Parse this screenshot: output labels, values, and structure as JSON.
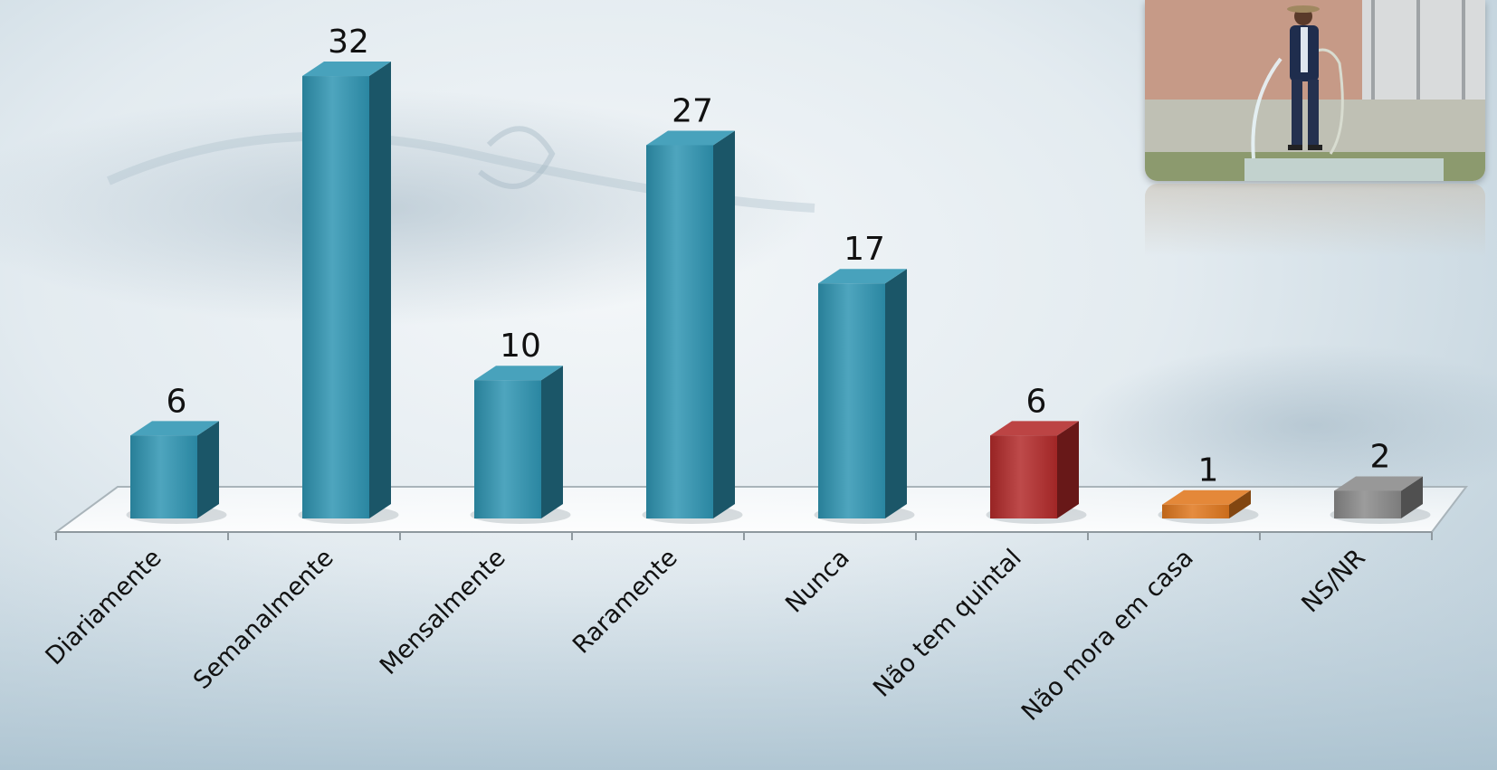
{
  "chart_data": {
    "type": "bar",
    "categories": [
      "Diariamente",
      "Semanalmente",
      "Mensalmente",
      "Raramente",
      "Nunca",
      "Não tem quintal",
      "Não mora em casa",
      "NS/NR"
    ],
    "values": [
      6,
      32,
      10,
      27,
      17,
      6,
      1,
      2
    ],
    "bar_colors": [
      "#2f95b3",
      "#2f95b3",
      "#2f95b3",
      "#2f95b3",
      "#2f95b3",
      "#b32a2a",
      "#e0781e",
      "#8a8a8a"
    ],
    "data_labels": true,
    "grid": false,
    "legend": "none",
    "style": "3d-column"
  },
  "photo": {
    "icon": "man-washing-sidewalk-with-hose-photo"
  }
}
